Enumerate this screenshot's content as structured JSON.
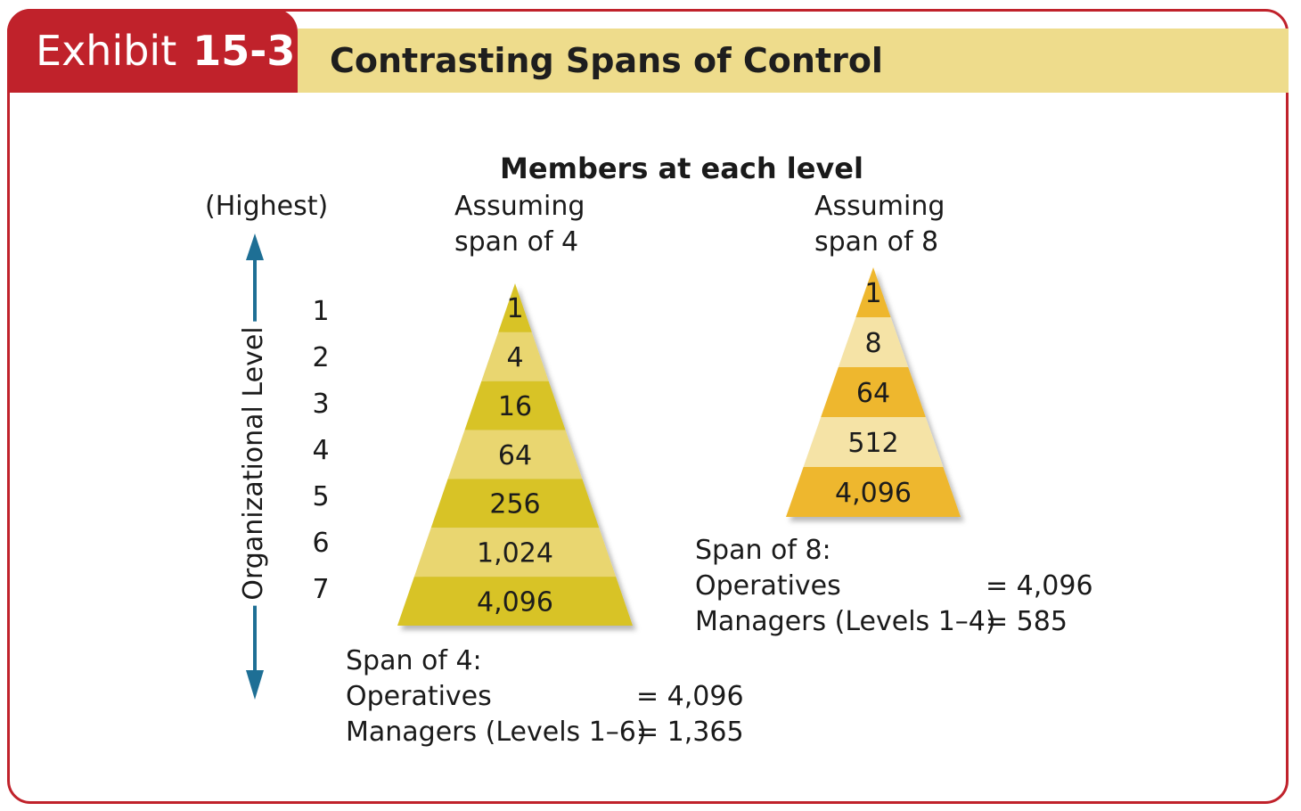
{
  "header": {
    "exhibit_label": "Exhibit",
    "exhibit_number": "15-3",
    "title": "Contrasting Spans of Control"
  },
  "diagram": {
    "heading": "Members at each level",
    "highest_label": "(Highest)",
    "axis_label": "Organizational Level",
    "levels": [
      "1",
      "2",
      "3",
      "4",
      "5",
      "6",
      "7"
    ],
    "pyramid_span4": {
      "caption_line1": "Assuming",
      "caption_line2": "span of 4",
      "tiers": [
        "1",
        "4",
        "16",
        "64",
        "256",
        "1,024",
        "4,096"
      ],
      "summary": {
        "title": "Span of 4:",
        "operatives_label": "Operatives",
        "operatives_value": "= 4,096",
        "managers_label": "Managers (Levels 1–6)",
        "managers_value": "= 1,365"
      }
    },
    "pyramid_span8": {
      "caption_line1": "Assuming",
      "caption_line2": "span of 8",
      "tiers": [
        "1",
        "8",
        "64",
        "512",
        "4,096"
      ],
      "summary": {
        "title": "Span of 8:",
        "operatives_label": "Operatives",
        "operatives_value": "= 4,096",
        "managers_label": "Managers (Levels 1–4)",
        "managers_value": "= 585"
      }
    }
  },
  "colors": {
    "accent_red": "#c0222b",
    "title_band": "#eedc8c",
    "arrow_blue": "#1e6f95",
    "span4_dark": "#d8c326",
    "span4_light": "#e9d66f",
    "span8_dark": "#eeb72f",
    "span8_light": "#f5e3a6"
  }
}
